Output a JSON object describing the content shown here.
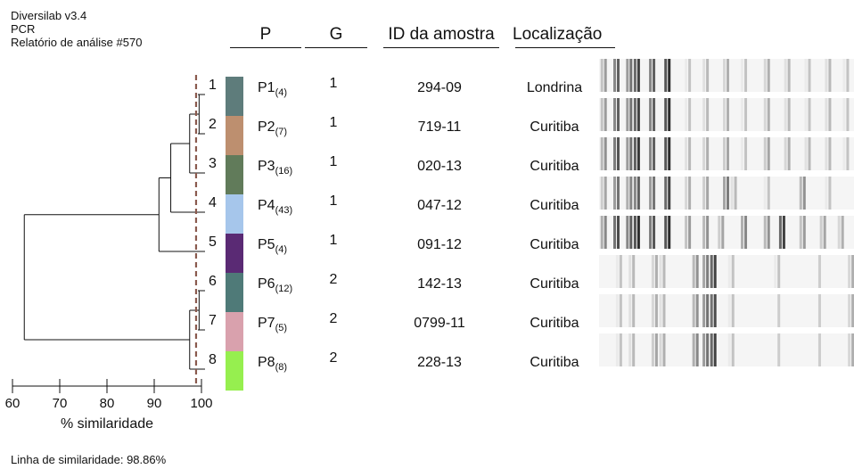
{
  "header": {
    "app_name": "Diversilab v3.4",
    "method": "PCR",
    "report": "Relatório de análise #570"
  },
  "columns": {
    "p": "P",
    "g": "G",
    "id": "ID da amostra",
    "loc": "Localização"
  },
  "chart_data": {
    "type": "dendrogram",
    "x_axis": {
      "label": "% similaridade",
      "ticks": [
        60,
        70,
        80,
        90,
        100
      ],
      "range": [
        60,
        100
      ]
    },
    "similarity_threshold": 98.86,
    "footer": "Linha de similaridade: 98.86%",
    "rows": [
      {
        "num": "1",
        "pattern": "P1",
        "count": "(4)",
        "group": "1",
        "sample_id": "294-09",
        "location": "Londrina",
        "color": "#5e7c7b"
      },
      {
        "num": "2",
        "pattern": "P2",
        "count": "(7)",
        "group": "1",
        "sample_id": "719-11",
        "location": "Curitiba",
        "color": "#bd8f6f"
      },
      {
        "num": "3",
        "pattern": "P3",
        "count": "(16)",
        "group": "1",
        "sample_id": "020-13",
        "location": "Curitiba",
        "color": "#617b5a"
      },
      {
        "num": "4",
        "pattern": "P4",
        "count": "(43)",
        "group": "1",
        "sample_id": "047-12",
        "location": "Curitiba",
        "color": "#a6c6eb"
      },
      {
        "num": "5",
        "pattern": "P5",
        "count": "(4)",
        "group": "1",
        "sample_id": "091-12",
        "location": "Curitiba",
        "color": "#5a2a74"
      },
      {
        "num": "6",
        "pattern": "P6",
        "count": "(12)",
        "group": "2",
        "sample_id": "142-13",
        "location": "Curitiba",
        "color": "#4f7a78"
      },
      {
        "num": "7",
        "pattern": "P7",
        "count": "(5)",
        "group": "2",
        "sample_id": "0799-11",
        "location": "Curitiba",
        "color": "#d9a1ad"
      },
      {
        "num": "8",
        "pattern": "P8",
        "count": "(8)",
        "group": "2",
        "sample_id": "228-13",
        "location": "Curitiba",
        "color": "#96ef4f"
      }
    ],
    "merges": [
      {
        "a": 1,
        "b": 2,
        "similarity": 99.5
      },
      {
        "a": "1-2",
        "b": 3,
        "similarity": 97.5
      },
      {
        "a": 6,
        "b": 7,
        "similarity": 99.5
      },
      {
        "a": "1-3",
        "b": 4,
        "similarity": 93.5
      },
      {
        "a": "6-7",
        "b": 8,
        "similarity": 97.5
      },
      {
        "a": "1-4",
        "b": 5,
        "similarity": 91.0
      },
      {
        "a": "1-5",
        "b": "6-8",
        "similarity": 62.5
      }
    ]
  }
}
